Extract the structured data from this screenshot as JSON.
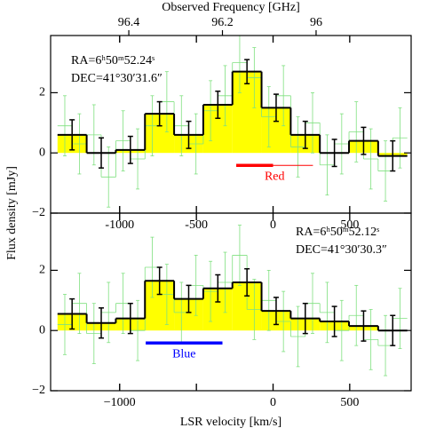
{
  "chart_data": [
    {
      "type": "step",
      "x2label": "Observed Frequency [GHz]",
      "x2lim": [
        96.567,
        95.797
      ],
      "x2ticks": [
        96.4,
        96.2,
        96
      ],
      "ylabel": "Flux density [mJy]",
      "xlim": [
        -1450,
        900
      ],
      "xticks": [
        -1000,
        -500,
        0,
        500
      ],
      "ylim": [
        -2,
        3.9
      ],
      "yticks": [
        {
          "value": -2,
          "label": "−2"
        },
        0,
        2
      ],
      "fill": "#ffff00",
      "annotations": [
        "RA=6ʰ50ᵐ52.24ˢ",
        "DEC=41°30′31.6″"
      ],
      "range_bar": {
        "label": "Red",
        "color": "#ff0000",
        "thick": [
          -240,
          0
        ],
        "thin": [
          0,
          260
        ]
      },
      "series": [
        {
          "name": "fine",
          "color": "#7fe07f",
          "bins": [
            -1405,
            -1310,
            -1215,
            -1120,
            -1025,
            -930,
            -835,
            -740,
            -645,
            -550,
            -455,
            -360,
            -265,
            -170,
            -75,
            20,
            115,
            210,
            305,
            400,
            495,
            590,
            685,
            780,
            875
          ],
          "values": [
            0.9,
            0.3,
            0.6,
            -0.8,
            0.4,
            -0.2,
            0.9,
            1.7,
            0.9,
            0.3,
            1.4,
            1.9,
            3.0,
            2.5,
            1.2,
            1.9,
            0.2,
            1.0,
            -0.4,
            0.3,
            0.7,
            -0.2,
            -0.6,
            0.5
          ],
          "errors": [
            1.0,
            1.0,
            1.0,
            1.0,
            1.0,
            1.0,
            1.0,
            1.0,
            1.0,
            1.0,
            1.0,
            1.0,
            1.0,
            1.0,
            1.0,
            1.0,
            1.0,
            1.0,
            1.0,
            1.0,
            1.0,
            1.0,
            1.0,
            1.0
          ]
        },
        {
          "name": "binned",
          "color": "#000000",
          "bins": [
            -1405,
            -1215,
            -1025,
            -835,
            -645,
            -455,
            -265,
            -75,
            115,
            305,
            495,
            685,
            875
          ],
          "values": [
            0.6,
            0.0,
            0.1,
            1.3,
            0.6,
            1.6,
            2.7,
            1.5,
            0.6,
            0.0,
            0.4,
            -0.1
          ],
          "errors": [
            0.5,
            0.5,
            0.45,
            0.4,
            0.45,
            0.45,
            0.4,
            0.45,
            0.45,
            0.45,
            0.45,
            0.5
          ]
        }
      ]
    },
    {
      "type": "step",
      "xlabel": "LSR velocity [km/s]",
      "xlim": [
        -1450,
        900
      ],
      "xticks": [
        {
          "value": -1000,
          "label": "−1000"
        },
        {
          "value": -500,
          "label": ""
        },
        0,
        500
      ],
      "ylim": [
        -2,
        3.9
      ],
      "yticks": [
        {
          "value": -2,
          "label": "−2"
        },
        0,
        2
      ],
      "fill": "#ffff00",
      "annotations": [
        "RA=6ʰ50ᵐ52.12ˢ",
        "DEC=41°30′30.3″"
      ],
      "range_bar": {
        "label": "Blue",
        "color": "#0000ff",
        "thick": [
          -830,
          -330
        ]
      },
      "series": [
        {
          "name": "fine",
          "color": "#7fe07f",
          "bins": [
            -1405,
            -1310,
            -1215,
            -1120,
            -1025,
            -930,
            -835,
            -740,
            -645,
            -550,
            -455,
            -360,
            -265,
            -170,
            -75,
            20,
            115,
            210,
            305,
            400,
            495,
            590,
            685,
            780,
            875
          ],
          "values": [
            0.2,
            0.9,
            -0.1,
            0.6,
            0.9,
            0.0,
            2.1,
            1.2,
            0.6,
            1.5,
            1.3,
            1.6,
            2.5,
            0.7,
            1.0,
            0.3,
            -0.2,
            0.9,
            0.6,
            0.0,
            0.5,
            -0.3,
            -0.5,
            0.4
          ],
          "errors": [
            1.0,
            1.0,
            1.0,
            1.0,
            1.0,
            1.0,
            1.0,
            1.0,
            1.0,
            1.0,
            1.0,
            1.0,
            1.0,
            1.0,
            1.0,
            1.0,
            1.0,
            1.0,
            1.0,
            1.0,
            1.0,
            1.0,
            1.0,
            1.0
          ]
        },
        {
          "name": "binned",
          "color": "#000000",
          "bins": [
            -1405,
            -1215,
            -1025,
            -835,
            -645,
            -455,
            -265,
            -75,
            115,
            305,
            495,
            685,
            875
          ],
          "values": [
            0.55,
            0.25,
            0.4,
            1.65,
            1.05,
            1.4,
            1.6,
            0.65,
            0.4,
            0.3,
            0.15,
            0.0
          ],
          "errors": [
            0.5,
            0.5,
            0.5,
            0.45,
            0.45,
            0.45,
            0.45,
            0.45,
            0.5,
            0.5,
            0.5,
            0.5
          ]
        }
      ]
    }
  ]
}
